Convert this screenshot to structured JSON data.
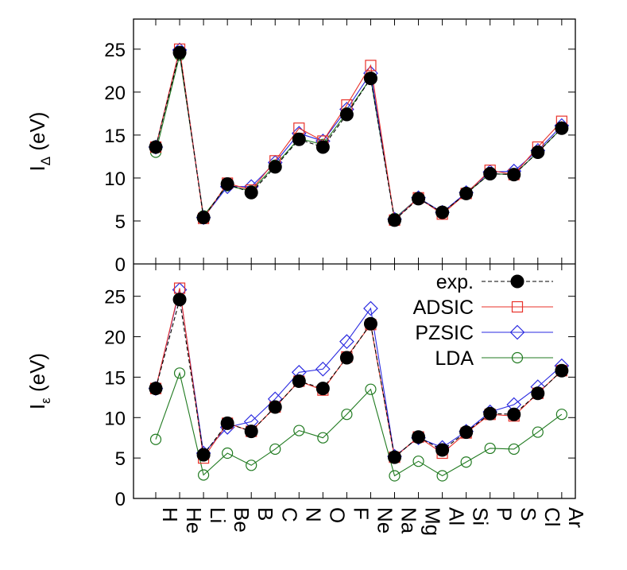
{
  "chart_data": {
    "type": "line",
    "categories": [
      "H",
      "He",
      "Li",
      "Be",
      "B",
      "C",
      "N",
      "O",
      "F",
      "Ne",
      "Na",
      "Mg",
      "Al",
      "Si",
      "P",
      "S",
      "Cl",
      "Ar"
    ],
    "colors": {
      "exp.": "#000000",
      "ADSIC": "#e8322a",
      "PZSIC": "#2a2ae0",
      "LDA": "#207a20"
    },
    "markers": {
      "exp.": "filled-circle",
      "ADSIC": "open-square",
      "PZSIC": "open-diamond",
      "LDA": "open-circle"
    },
    "panels": [
      {
        "ylabel": "I",
        "ylabel_sub": "Δ",
        "ylabel_unit": " (eV)",
        "ylim": [
          0,
          28.5
        ],
        "yticks": [
          "0",
          "5",
          "10",
          "15",
          "20",
          "25"
        ],
        "legend": false,
        "series": [
          {
            "name": "exp.",
            "values": [
              13.6,
              24.6,
              5.4,
              9.3,
              8.3,
              11.3,
              14.5,
              13.6,
              17.4,
              21.6,
              5.1,
              7.6,
              6.0,
              8.2,
              10.5,
              10.4,
              13.0,
              15.8
            ]
          },
          {
            "name": "ADSIC",
            "values": [
              13.6,
              25.0,
              5.3,
              9.4,
              8.6,
              12.0,
              15.8,
              14.3,
              18.5,
              23.1,
              5.1,
              7.7,
              5.8,
              8.2,
              10.9,
              10.4,
              13.6,
              16.6
            ]
          },
          {
            "name": "PZSIC",
            "values": [
              13.6,
              24.9,
              5.4,
              9.0,
              9.0,
              11.8,
              15.2,
              14.3,
              18.0,
              22.2,
              5.2,
              7.7,
              6.0,
              8.3,
              10.7,
              10.8,
              13.2,
              16.1
            ]
          },
          {
            "name": "LDA",
            "values": [
              13.0,
              24.3,
              5.6,
              9.1,
              8.5,
              11.5,
              14.6,
              13.9,
              17.6,
              21.6,
              5.3,
              7.7,
              6.0,
              8.2,
              10.5,
              10.4,
              13.0,
              15.8
            ]
          }
        ]
      },
      {
        "ylabel": "I",
        "ylabel_sub": "ε",
        "ylabel_unit": " (eV)",
        "ylim": [
          0,
          29
        ],
        "yticks": [
          "0",
          "5",
          "10",
          "15",
          "20",
          "25"
        ],
        "legend": true,
        "series": [
          {
            "name": "exp.",
            "values": [
              13.6,
              24.6,
              5.4,
              9.3,
              8.3,
              11.3,
              14.5,
              13.6,
              17.4,
              21.6,
              5.1,
              7.6,
              6.0,
              8.2,
              10.5,
              10.4,
              13.0,
              15.8
            ]
          },
          {
            "name": "ADSIC",
            "values": [
              13.6,
              26.0,
              5.0,
              9.3,
              8.3,
              11.3,
              14.5,
              13.4,
              17.5,
              21.5,
              5.1,
              7.6,
              5.6,
              8.1,
              10.4,
              10.2,
              13.0,
              15.8
            ]
          },
          {
            "name": "PZSIC",
            "values": [
              13.6,
              25.8,
              5.6,
              8.8,
              9.5,
              12.3,
              15.6,
              16.0,
              19.4,
              23.5,
              5.2,
              7.5,
              6.3,
              8.3,
              10.7,
              11.6,
              13.8,
              16.4
            ]
          },
          {
            "name": "LDA",
            "values": [
              7.3,
              15.5,
              2.9,
              5.6,
              4.1,
              6.1,
              8.4,
              7.5,
              10.4,
              13.5,
              2.8,
              4.6,
              2.8,
              4.5,
              6.2,
              6.1,
              8.2,
              10.4
            ]
          }
        ]
      }
    ]
  }
}
